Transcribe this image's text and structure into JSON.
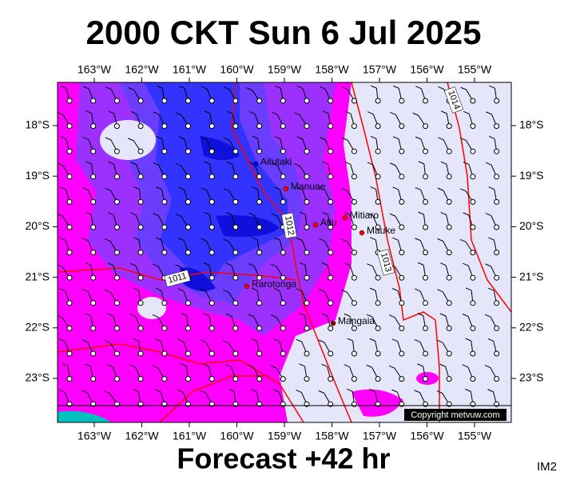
{
  "header": {
    "title": "2000 CKT Sun 6 Jul 2025"
  },
  "footer": {
    "forecast": "Forecast +42 hr",
    "code": "IM2"
  },
  "axes": {
    "longitudes": [
      "163°W",
      "162°W",
      "161°W",
      "160°W",
      "159°W",
      "158°W",
      "157°W",
      "156°W",
      "155°W"
    ],
    "latitudes": [
      "18°S",
      "19°S",
      "20°S",
      "21°S",
      "22°S",
      "23°S"
    ]
  },
  "places": [
    "Aitutaki",
    "Manuae",
    "Atiu",
    "Mitiaro",
    "Mauke",
    "Rarotonga",
    "Mangaia"
  ],
  "isobars": [
    "1014",
    "1012",
    "1013",
    "1011"
  ],
  "copyright": "Copyright metvuw.com"
}
